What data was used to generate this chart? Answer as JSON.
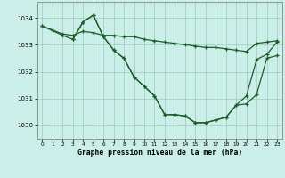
{
  "title": "Graphe pression niveau de la mer (hPa)",
  "bg_color": "#cceee8",
  "grid_color": "#99ccbb",
  "line_color": "#1a5c2a",
  "xlim": [
    -0.5,
    23.5
  ],
  "ylim": [
    1029.5,
    1034.6
  ],
  "yticks": [
    1030,
    1031,
    1032,
    1033,
    1034
  ],
  "xticks": [
    0,
    1,
    2,
    3,
    4,
    5,
    6,
    7,
    8,
    9,
    10,
    11,
    12,
    13,
    14,
    15,
    16,
    17,
    18,
    19,
    20,
    21,
    22,
    23
  ],
  "line1_x": [
    0,
    1,
    2,
    3,
    4,
    5,
    6,
    7,
    8,
    9,
    10,
    11,
    12,
    13,
    14,
    15,
    16,
    17,
    18,
    19,
    20,
    21,
    22,
    23
  ],
  "line1_y": [
    1033.7,
    1033.55,
    1033.4,
    1033.35,
    1033.5,
    1033.45,
    1033.35,
    1033.35,
    1033.3,
    1033.3,
    1033.2,
    1033.15,
    1033.1,
    1033.05,
    1033.0,
    1032.95,
    1032.9,
    1032.9,
    1032.85,
    1032.8,
    1032.75,
    1033.05,
    1033.1,
    1033.15
  ],
  "line2_x": [
    0,
    2,
    3,
    4,
    5,
    6,
    7,
    8,
    9,
    10,
    11,
    12,
    13,
    14,
    15,
    16,
    17,
    18,
    19,
    20,
    21,
    22,
    23
  ],
  "line2_y": [
    1033.7,
    1033.35,
    1033.2,
    1033.85,
    1034.1,
    1033.3,
    1032.8,
    1032.5,
    1031.8,
    1031.45,
    1031.1,
    1030.4,
    1030.4,
    1030.35,
    1030.1,
    1030.1,
    1030.2,
    1030.3,
    1030.75,
    1030.8,
    1031.15,
    1032.5,
    1032.6
  ],
  "line3_x": [
    3,
    4,
    5,
    6,
    7,
    8,
    9,
    10,
    11,
    12,
    13,
    14,
    15,
    16,
    17,
    18,
    19,
    20,
    21,
    22,
    23
  ],
  "line3_y": [
    1033.2,
    1033.85,
    1034.1,
    1033.3,
    1032.8,
    1032.5,
    1031.8,
    1031.45,
    1031.1,
    1030.4,
    1030.4,
    1030.35,
    1030.1,
    1030.1,
    1030.2,
    1030.3,
    1030.75,
    1031.1,
    1032.45,
    1032.65,
    1033.1
  ]
}
